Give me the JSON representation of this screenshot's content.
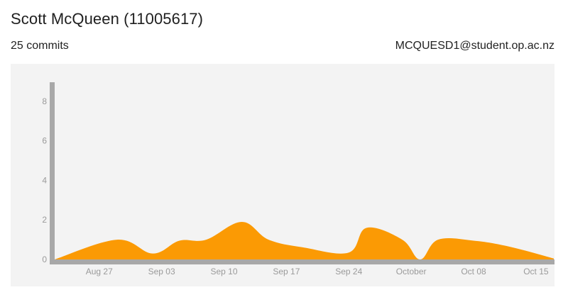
{
  "header": {
    "name": "Scott McQueen (11005617)"
  },
  "stats": {
    "commits_text": "25 commits",
    "email": "MCQUESD1@student.op.ac.nz"
  },
  "chart_data": {
    "type": "area",
    "title": "",
    "xlabel": "",
    "ylabel": "",
    "ylim": [
      0,
      9
    ],
    "yticks": [
      "0",
      "2",
      "4",
      "6",
      "8"
    ],
    "xtick_labels": [
      "Aug 27",
      "Sep 03",
      "Sep 10",
      "Sep 17",
      "Sep 24",
      "October",
      "Oct 08",
      "Oct 15"
    ],
    "x_range": [
      "2019-08-22",
      "2019-10-17"
    ],
    "xtick_dates": [
      "2019-08-27",
      "2019-09-03",
      "2019-09-10",
      "2019-09-17",
      "2019-09-24",
      "2019-10-01",
      "2019-10-08",
      "2019-10-15"
    ],
    "x": [
      "2019-08-22",
      "2019-08-29",
      "2019-09-02",
      "2019-09-05",
      "2019-09-08",
      "2019-09-12",
      "2019-09-15",
      "2019-09-19",
      "2019-09-24",
      "2019-09-26",
      "2019-09-30",
      "2019-10-02",
      "2019-10-04",
      "2019-10-08",
      "2019-10-12",
      "2019-10-17"
    ],
    "values": [
      0,
      1,
      0.3,
      0.95,
      1,
      1.9,
      1,
      0.6,
      0.35,
      1.6,
      1,
      0,
      1,
      0.95,
      0.65,
      0.05
    ],
    "color": "#fb9a04"
  }
}
